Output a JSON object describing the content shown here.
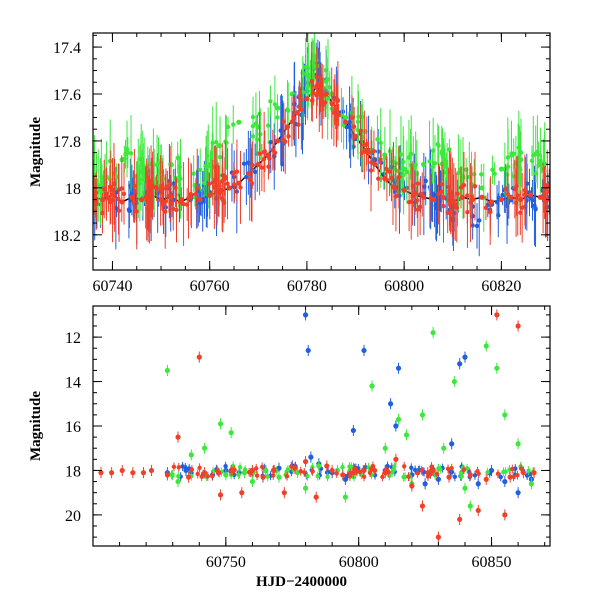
{
  "colors": {
    "blue": "#1f5fe0",
    "green": "#3ce83c",
    "red": "#f0402a",
    "fit": "#000000"
  },
  "chart_data": [
    {
      "type": "scatter",
      "title": "",
      "xlabel": "",
      "ylabel": "Magnitude",
      "xlim": [
        60736,
        60830
      ],
      "ylim": [
        18.35,
        17.34
      ],
      "y_inverted": true,
      "xticks": [
        60740,
        60760,
        60780,
        60800,
        60820
      ],
      "yticks": [
        17.4,
        17.6,
        17.8,
        18,
        18.2
      ],
      "ytick_labels": [
        "17.4",
        "17.6",
        "17.8",
        "18",
        "18.2"
      ],
      "series": [
        {
          "color": "blue",
          "x": [
            60736,
            60740,
            60744,
            60748,
            60752,
            60756,
            60760,
            60764,
            60768,
            60772,
            60776,
            60779,
            60781,
            60782,
            60784,
            60787,
            60790,
            60794,
            60798,
            60802,
            60806,
            60810,
            60814,
            60818,
            60822,
            60826,
            60830
          ],
          "y": [
            18.04,
            18.03,
            18.05,
            18.04,
            18.03,
            18.05,
            18.02,
            18.0,
            17.94,
            17.86,
            17.74,
            17.64,
            17.56,
            17.52,
            17.59,
            17.68,
            17.79,
            17.88,
            17.97,
            18.0,
            18.03,
            18.08,
            18.12,
            18.07,
            18.05,
            18.04,
            18.04
          ]
        },
        {
          "color": "green",
          "x": [
            60738,
            60742,
            60747,
            60752,
            60757,
            60762,
            60766,
            60770,
            60774,
            60777,
            60780,
            60782,
            60785,
            60788,
            60792,
            60796,
            60800,
            60804,
            60808,
            60812,
            60816,
            60820,
            60824,
            60828
          ],
          "y": [
            17.98,
            17.88,
            17.95,
            17.9,
            17.99,
            17.82,
            17.72,
            17.74,
            17.66,
            17.6,
            17.52,
            17.48,
            17.6,
            17.7,
            17.76,
            17.86,
            17.92,
            17.9,
            17.86,
            17.95,
            18.0,
            17.92,
            17.88,
            17.9
          ]
        },
        {
          "color": "red",
          "x": [
            60736,
            60738,
            60740,
            60742,
            60744,
            60746,
            60748,
            60750,
            60752,
            60754,
            60756,
            60758,
            60760,
            60762,
            60764,
            60766,
            60768,
            60770,
            60772,
            60774,
            60776,
            60778,
            60780,
            60782,
            60784,
            60786,
            60788,
            60790,
            60792,
            60794,
            60796,
            60798,
            60800,
            60802,
            60804,
            60806,
            60808,
            60810,
            60812,
            60814,
            60816,
            60818,
            60820,
            60822,
            60824,
            60826,
            60828,
            60830
          ],
          "y": [
            18.04,
            18.05,
            18.03,
            18.06,
            18.04,
            18.05,
            18.03,
            18.05,
            18.04,
            18.06,
            18.04,
            18.05,
            18.03,
            18.02,
            18.0,
            17.98,
            17.94,
            17.9,
            17.86,
            17.8,
            17.74,
            17.68,
            17.62,
            17.57,
            17.6,
            17.66,
            17.72,
            17.78,
            17.84,
            17.9,
            17.96,
            18.0,
            18.01,
            18.03,
            18.04,
            18.05,
            18.04,
            18.06,
            18.04,
            18.05,
            18.04,
            18.06,
            18.05,
            18.04,
            18.05,
            18.03,
            18.04,
            18.05
          ]
        }
      ]
    },
    {
      "type": "scatter",
      "title": "",
      "xlabel": "HJD−2400000",
      "ylabel": "Magnitude",
      "xlim": [
        60700,
        60872
      ],
      "ylim": [
        21.4,
        10.6
      ],
      "y_inverted": true,
      "xticks": [
        60750,
        60800,
        60850
      ],
      "yticks": [
        12,
        14,
        16,
        18,
        20
      ],
      "ytick_labels": [
        "12",
        "14",
        "16",
        "18",
        "20"
      ],
      "series": [
        {
          "color": "blue",
          "x": [
            60728,
            60735,
            60745,
            60750,
            60755,
            60760,
            60765,
            60770,
            60775,
            60780,
            60781,
            60782,
            60785,
            60790,
            60795,
            60798,
            60802,
            60810,
            60812,
            60814,
            60815,
            60820,
            60825,
            60830,
            60835,
            60838,
            60840,
            60845,
            60850,
            60855,
            60860,
            60865
          ],
          "y": [
            18.1,
            18.0,
            18.2,
            18.0,
            18.1,
            18.1,
            18.0,
            17.9,
            17.8,
            11.0,
            12.6,
            17.4,
            17.7,
            18.1,
            18.4,
            16.2,
            12.6,
            18.0,
            15.0,
            16.0,
            13.4,
            18.2,
            18.6,
            18.4,
            16.8,
            13.2,
            12.9,
            18.6,
            18.0,
            18.5,
            19.0,
            18.4
          ]
        },
        {
          "color": "green",
          "x": [
            60728,
            60732,
            60737,
            60742,
            60748,
            60750,
            60752,
            60757,
            60760,
            60765,
            60770,
            60777,
            60780,
            60785,
            60792,
            60795,
            60805,
            60810,
            60815,
            60818,
            60820,
            60824,
            60828,
            60832,
            60836,
            60840,
            60842,
            60848,
            60852,
            60855,
            60860,
            60865
          ],
          "y": [
            13.5,
            18.5,
            17.3,
            17.0,
            15.9,
            18.2,
            16.3,
            18.1,
            18.5,
            18.0,
            18.3,
            18.1,
            18.8,
            17.8,
            18.0,
            19.2,
            14.2,
            17.0,
            15.7,
            16.4,
            18.6,
            15.5,
            11.8,
            17.0,
            14.0,
            18.8,
            19.6,
            12.4,
            13.4,
            15.5,
            16.8,
            18.6
          ]
        },
        {
          "color": "red",
          "x": [
            60703,
            60707,
            60711,
            60715,
            60719,
            60722,
            60728,
            60732,
            60736,
            60740,
            60742,
            60748,
            60752,
            60756,
            60760,
            60764,
            60768,
            60772,
            60776,
            60780,
            60784,
            60788,
            60790,
            60794,
            60798,
            60802,
            60806,
            60810,
            60814,
            60820,
            60824,
            60826,
            60828,
            60830,
            60834,
            60838,
            60842,
            60845,
            60848,
            60852,
            60855,
            60857,
            60860,
            60862,
            60866
          ],
          "y": [
            18.1,
            18.1,
            18.0,
            18.1,
            18.1,
            18.0,
            18.2,
            16.5,
            18.3,
            12.9,
            18.1,
            19.1,
            18.0,
            19.0,
            18.0,
            18.3,
            18.0,
            19.0,
            17.9,
            17.6,
            19.2,
            17.8,
            18.0,
            18.2,
            18.1,
            18.0,
            18.0,
            18.1,
            17.5,
            18.7,
            19.6,
            18.1,
            18.0,
            21.0,
            18.3,
            20.2,
            18.2,
            19.8,
            18.4,
            11.0,
            20.0,
            18.3,
            11.5,
            18.1,
            18.1
          ]
        }
      ]
    }
  ]
}
